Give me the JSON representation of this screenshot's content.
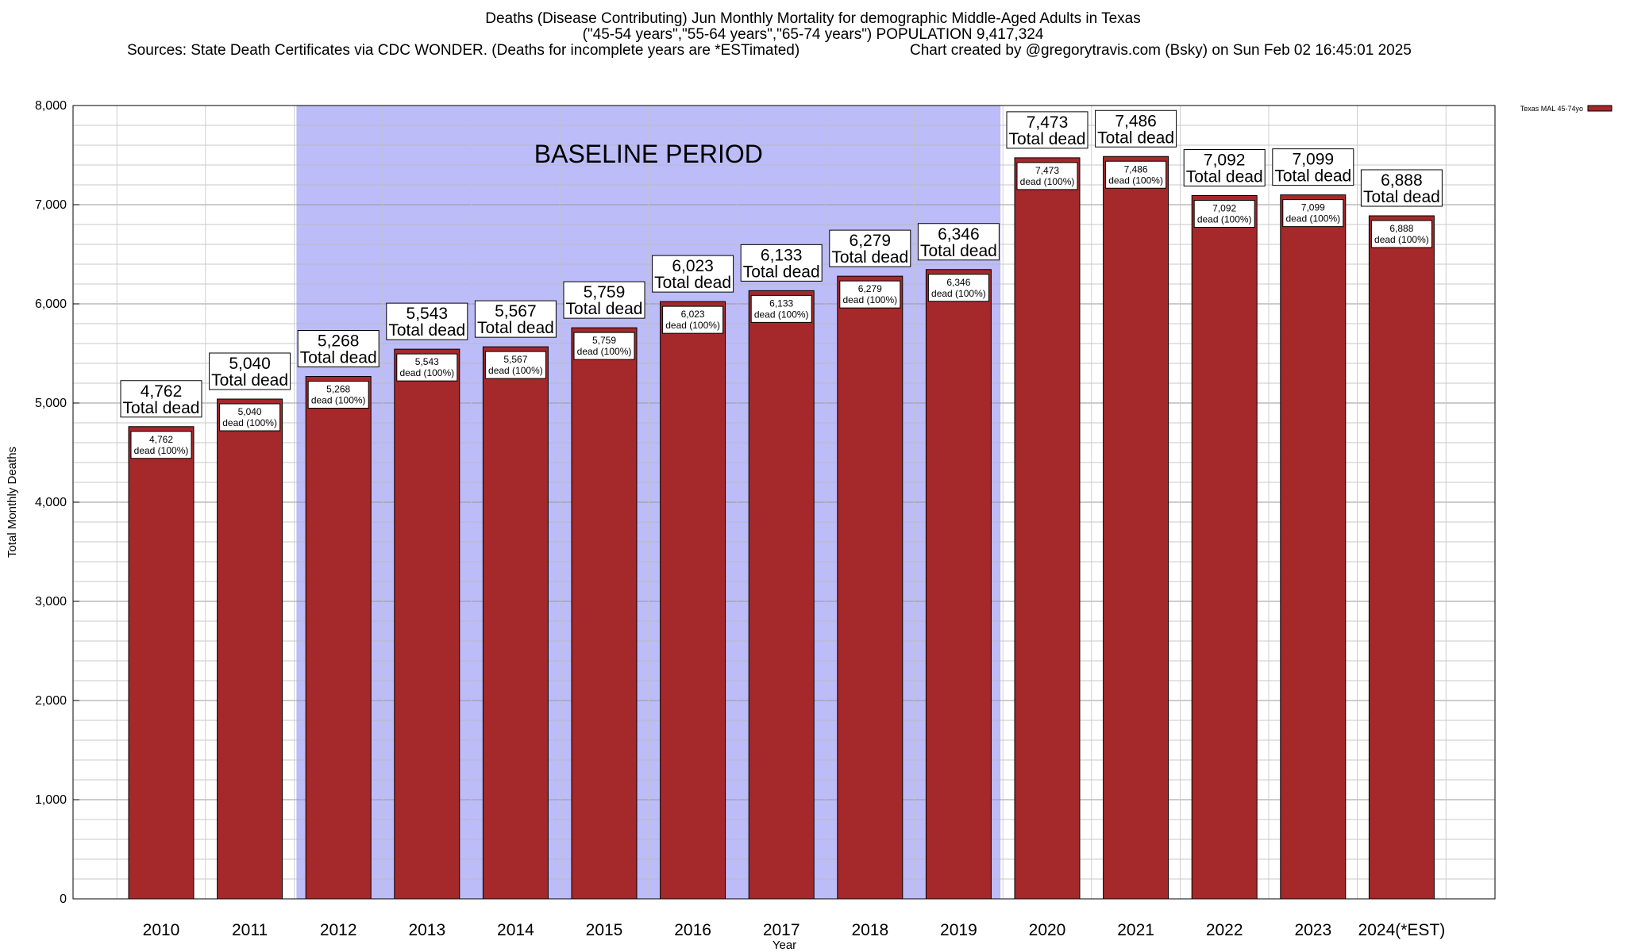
{
  "header": {
    "line1": "Deaths (Disease Contributing) Jun Monthly Mortality for demographic Middle-Aged Adults in Texas",
    "line2": "(\"45-54 years\",\"55-64 years\",\"65-74 years\") POPULATION 9,417,324",
    "line3": "Sources: State Death Certificates via CDC WONDER. (Deaths for incomplete years are *ESTimated)",
    "line4": "Chart created by @gregorytravis.com (Bsky) on Sun Feb 02 16:45:01 2025"
  },
  "chart_data": {
    "type": "bar",
    "title": "Deaths (Disease Contributing) Jun Monthly Mortality for demographic Middle-Aged Adults in Texas",
    "xlabel": "Year",
    "ylabel": "Total Monthly Deaths",
    "ylim": [
      0,
      8000
    ],
    "yticks": [
      0,
      1000,
      2000,
      3000,
      4000,
      5000,
      6000,
      7000,
      8000
    ],
    "ytick_labels": [
      "0",
      "1,000",
      "2,000",
      "3,000",
      "4,000",
      "5,000",
      "6,000",
      "7,000",
      "8,000"
    ],
    "grid": true,
    "categories": [
      "2010",
      "2011",
      "2012",
      "2013",
      "2014",
      "2015",
      "2016",
      "2017",
      "2018",
      "2019",
      "2020",
      "2021",
      "2022",
      "2023",
      "2024(*EST)"
    ],
    "series": [
      {
        "name": "Texas MAL 45-74yo",
        "color": "#a5282b",
        "values": [
          4762,
          5040,
          5268,
          5543,
          5567,
          5759,
          6023,
          6133,
          6279,
          6346,
          7473,
          7486,
          7092,
          7099,
          6888
        ]
      }
    ],
    "value_labels": [
      "4,762",
      "5,040",
      "5,268",
      "5,543",
      "5,567",
      "5,759",
      "6,023",
      "6,133",
      "6,279",
      "6,346",
      "7,473",
      "7,486",
      "7,092",
      "7,099",
      "6,888"
    ],
    "total_suffix": "Total dead",
    "inner_suffix": "dead (100%)",
    "legend": {
      "placement": "top-right",
      "label": "Texas MAL 45-74yo"
    },
    "baseline": {
      "label": "BASELINE PERIOD",
      "from_category": "2012",
      "to_category": "2019",
      "color": "#bcbcf8"
    }
  }
}
